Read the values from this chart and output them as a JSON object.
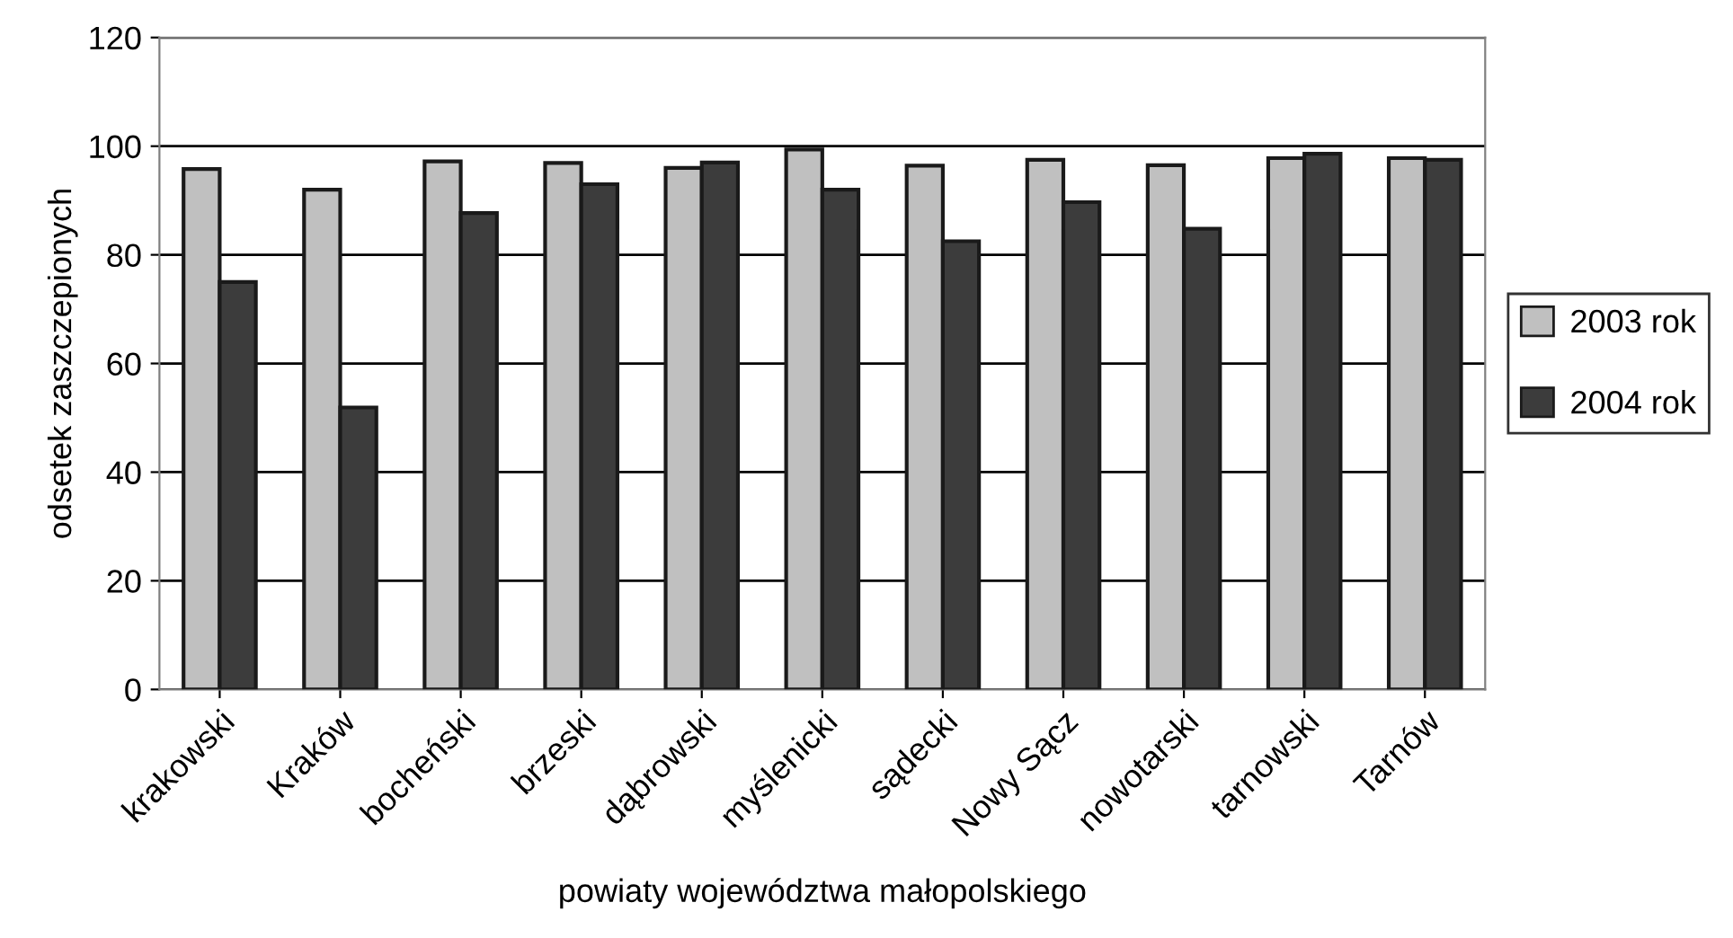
{
  "chart_data": {
    "type": "bar",
    "xlabel": "powiaty województwa małopolskiego",
    "ylabel": "odsetek zaszczepionych",
    "categories": [
      "krakowski",
      "Kraków",
      "bocheński",
      "brzeski",
      "dąbrowski",
      "myślenicki",
      "sądecki",
      "Nowy Sącz",
      "nowotarski",
      "tarnowski",
      "Tarnów"
    ],
    "series": [
      {
        "name": "2003 rok",
        "color": "#c0c0c0",
        "values": [
          95.8,
          92.0,
          97.2,
          96.9,
          96.0,
          99.4,
          96.4,
          97.5,
          96.5,
          97.8,
          97.8
        ]
      },
      {
        "name": "2004 rok",
        "color": "#3c3c3c",
        "values": [
          75,
          51.9,
          87.7,
          93.0,
          97.0,
          92.0,
          82.5,
          89.7,
          84.8,
          98.6,
          97.5
        ]
      }
    ],
    "ylim": [
      0,
      120
    ],
    "yticks": [
      0,
      20,
      40,
      60,
      80,
      100,
      120
    ],
    "grid": "y",
    "legend": "right"
  }
}
